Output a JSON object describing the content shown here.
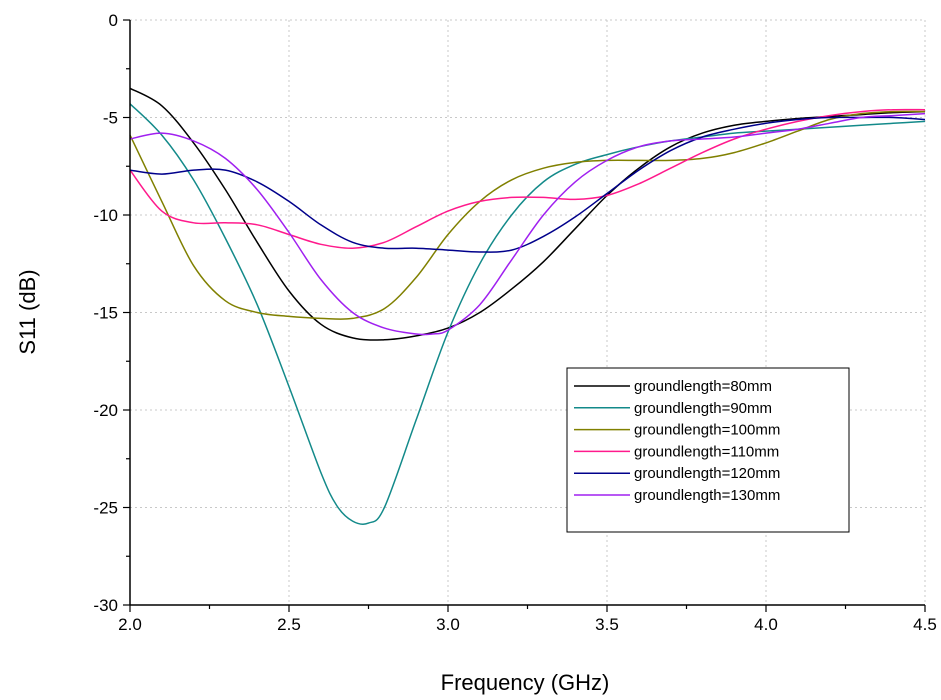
{
  "chart_data": {
    "type": "line",
    "xlabel": "Frequency (GHz)",
    "ylabel": "S11 (dB)",
    "xlim": [
      2.0,
      4.5
    ],
    "ylim": [
      -30,
      0
    ],
    "xticks": [
      "2.0",
      "2.5",
      "3.0",
      "3.5",
      "4.0",
      "4.5"
    ],
    "xtick_values": [
      2.0,
      2.5,
      3.0,
      3.5,
      4.0,
      4.5
    ],
    "yticks": [
      "0",
      "-5",
      "-10",
      "-15",
      "-20",
      "-25",
      "-30"
    ],
    "ytick_values": [
      0,
      -5,
      -10,
      -15,
      -20,
      -25,
      -30
    ],
    "grid": true,
    "legend_position": "lower-right",
    "series": [
      {
        "name": "groundlength=80mm",
        "color": "#000000",
        "x": [
          2.0,
          2.1,
          2.2,
          2.3,
          2.4,
          2.5,
          2.6,
          2.7,
          2.8,
          2.9,
          3.0,
          3.1,
          3.2,
          3.3,
          3.4,
          3.5,
          3.6,
          3.7,
          3.8,
          3.9,
          4.0,
          4.1,
          4.2,
          4.3,
          4.4,
          4.5
        ],
        "y": [
          -3.5,
          -4.4,
          -6.3,
          -8.7,
          -11.4,
          -13.9,
          -15.6,
          -16.3,
          -16.4,
          -16.2,
          -15.8,
          -15.0,
          -13.8,
          -12.4,
          -10.7,
          -9.0,
          -7.6,
          -6.5,
          -5.8,
          -5.4,
          -5.2,
          -5.05,
          -4.95,
          -4.85,
          -4.75,
          -4.7
        ]
      },
      {
        "name": "groundlength=90mm",
        "color": "#138a8a",
        "x": [
          2.0,
          2.1,
          2.2,
          2.3,
          2.4,
          2.5,
          2.6,
          2.65,
          2.7,
          2.75,
          2.8,
          2.9,
          3.0,
          3.1,
          3.2,
          3.3,
          3.4,
          3.5,
          3.6,
          3.7,
          3.8,
          3.9,
          4.0,
          4.1,
          4.2,
          4.3,
          4.4,
          4.5
        ],
        "y": [
          -4.3,
          -5.9,
          -8.2,
          -11.2,
          -14.6,
          -18.8,
          -23.2,
          -24.9,
          -25.7,
          -25.8,
          -25.0,
          -20.5,
          -16.0,
          -12.5,
          -10.0,
          -8.3,
          -7.4,
          -6.9,
          -6.5,
          -6.2,
          -6.0,
          -5.8,
          -5.7,
          -5.6,
          -5.5,
          -5.4,
          -5.3,
          -5.2
        ]
      },
      {
        "name": "groundlength=100mm",
        "color": "#808000",
        "x": [
          2.0,
          2.1,
          2.2,
          2.3,
          2.4,
          2.5,
          2.6,
          2.7,
          2.8,
          2.9,
          3.0,
          3.1,
          3.2,
          3.3,
          3.4,
          3.5,
          3.6,
          3.7,
          3.8,
          3.9,
          4.0,
          4.1,
          4.2,
          4.3,
          4.4,
          4.5
        ],
        "y": [
          -5.9,
          -9.3,
          -12.6,
          -14.4,
          -15.0,
          -15.2,
          -15.3,
          -15.3,
          -14.8,
          -13.2,
          -11.0,
          -9.3,
          -8.2,
          -7.6,
          -7.3,
          -7.2,
          -7.2,
          -7.2,
          -7.1,
          -6.8,
          -6.3,
          -5.7,
          -5.1,
          -4.8,
          -4.7,
          -4.7
        ]
      },
      {
        "name": "groundlength=110mm",
        "color": "#ff1a8c",
        "x": [
          2.0,
          2.1,
          2.2,
          2.3,
          2.4,
          2.5,
          2.6,
          2.7,
          2.8,
          2.9,
          3.0,
          3.1,
          3.2,
          3.3,
          3.4,
          3.5,
          3.6,
          3.7,
          3.8,
          3.9,
          4.0,
          4.1,
          4.2,
          4.3,
          4.4,
          4.5
        ],
        "y": [
          -7.7,
          -9.8,
          -10.4,
          -10.4,
          -10.5,
          -11.0,
          -11.5,
          -11.7,
          -11.4,
          -10.6,
          -9.8,
          -9.3,
          -9.1,
          -9.1,
          -9.2,
          -9.0,
          -8.4,
          -7.6,
          -6.8,
          -6.1,
          -5.6,
          -5.2,
          -4.9,
          -4.7,
          -4.6,
          -4.6
        ]
      },
      {
        "name": "groundlength=120mm",
        "color": "#00008b",
        "x": [
          2.0,
          2.1,
          2.2,
          2.3,
          2.4,
          2.5,
          2.6,
          2.7,
          2.8,
          2.9,
          3.0,
          3.1,
          3.2,
          3.3,
          3.4,
          3.5,
          3.6,
          3.7,
          3.8,
          3.9,
          4.0,
          4.1,
          4.2,
          4.3,
          4.4,
          4.5
        ],
        "y": [
          -7.7,
          -7.9,
          -7.7,
          -7.7,
          -8.3,
          -9.3,
          -10.5,
          -11.4,
          -11.7,
          -11.7,
          -11.8,
          -11.9,
          -11.8,
          -11.1,
          -10.1,
          -8.9,
          -7.7,
          -6.7,
          -6.0,
          -5.6,
          -5.3,
          -5.1,
          -5.0,
          -5.0,
          -5.0,
          -5.1
        ]
      },
      {
        "name": "groundlength=130mm",
        "color": "#a020f0",
        "x": [
          2.0,
          2.1,
          2.2,
          2.3,
          2.4,
          2.5,
          2.6,
          2.7,
          2.8,
          2.9,
          2.95,
          3.0,
          3.1,
          3.2,
          3.3,
          3.4,
          3.5,
          3.6,
          3.7,
          3.8,
          3.9,
          4.0,
          4.1,
          4.2,
          4.3,
          4.4,
          4.5
        ],
        "y": [
          -6.1,
          -5.8,
          -6.2,
          -7.1,
          -8.7,
          -10.9,
          -13.3,
          -15.0,
          -15.8,
          -16.1,
          -16.1,
          -15.9,
          -14.6,
          -12.3,
          -10.0,
          -8.3,
          -7.2,
          -6.5,
          -6.2,
          -6.1,
          -6.0,
          -5.8,
          -5.6,
          -5.3,
          -5.0,
          -4.9,
          -4.8
        ]
      }
    ]
  }
}
